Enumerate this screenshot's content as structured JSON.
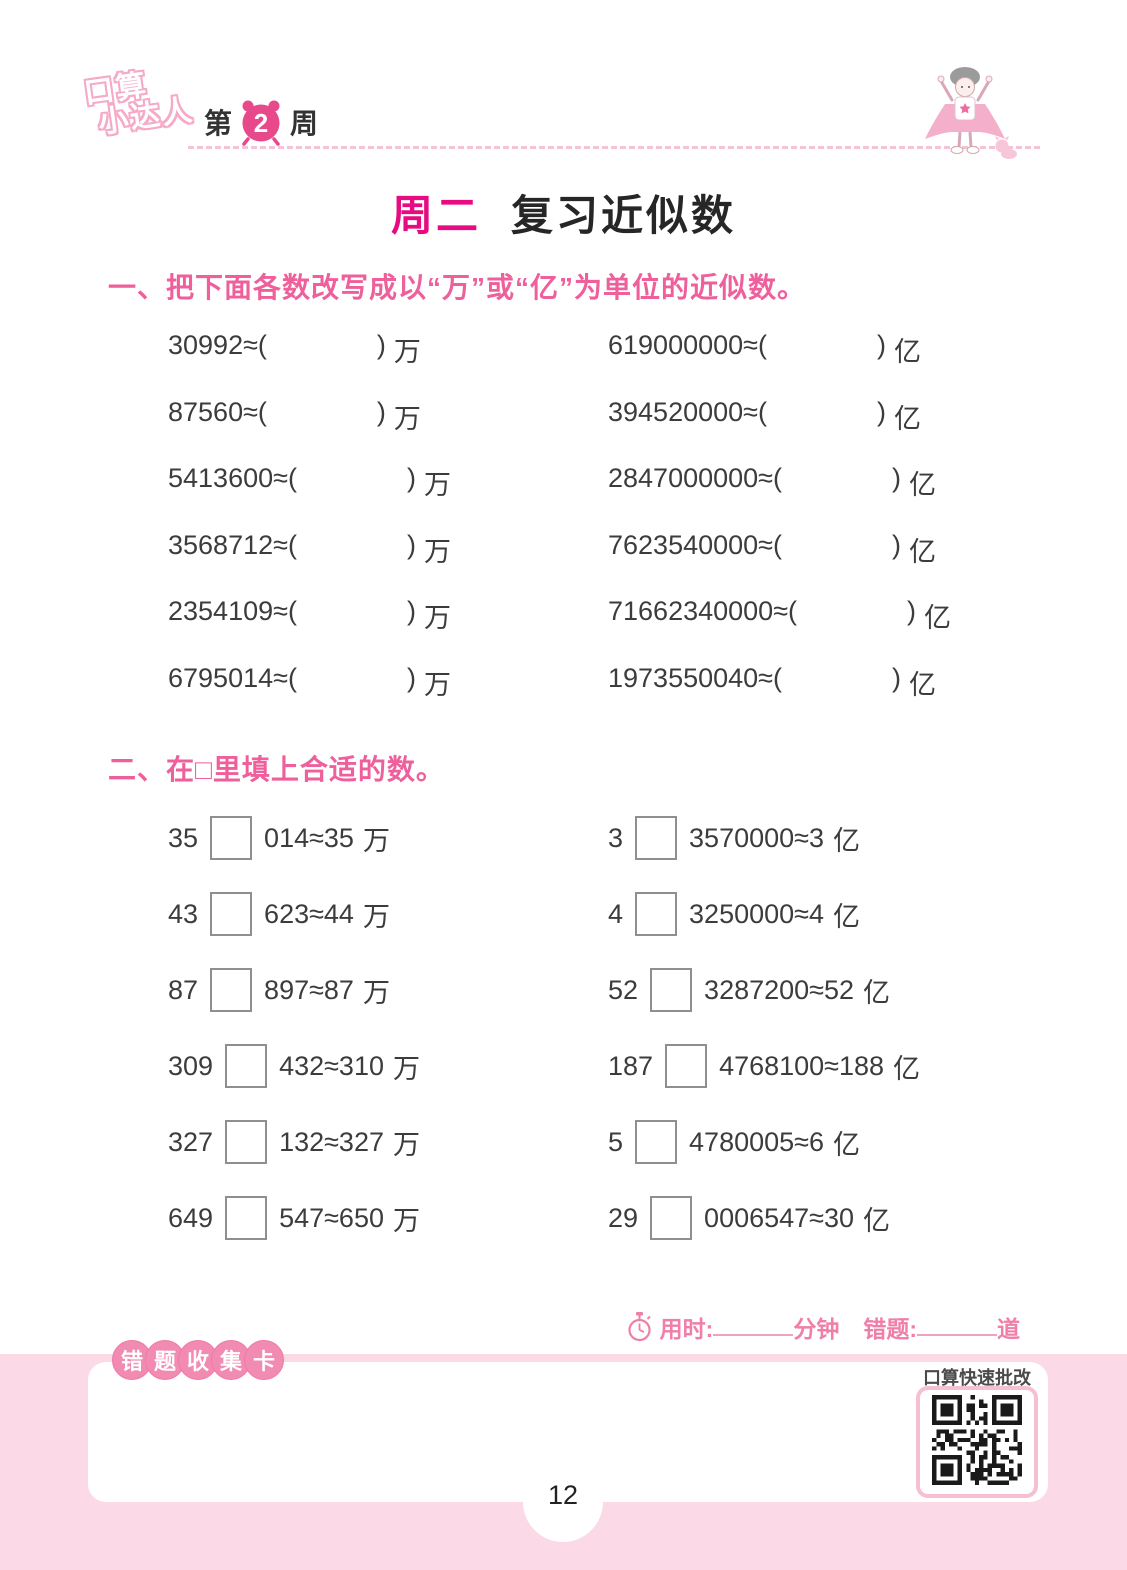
{
  "page": {
    "number": "12"
  },
  "header": {
    "logo": {
      "line1": "口算",
      "line2": "小达人"
    },
    "week": {
      "prefix": "第",
      "number": "2",
      "suffix": "周"
    }
  },
  "title": {
    "day": "周二",
    "text": "复习近似数"
  },
  "symbols": {
    "approx_open": "≈(",
    "close_paren": ")"
  },
  "section1": {
    "heading": "一、把下面各数改写成以“万”或“亿”为单位的近似数。",
    "rows_left": [
      {
        "num": "30992",
        "unit": "万"
      },
      {
        "num": "87560",
        "unit": "万"
      },
      {
        "num": "5413600",
        "unit": "万"
      },
      {
        "num": "3568712",
        "unit": "万"
      },
      {
        "num": "2354109",
        "unit": "万"
      },
      {
        "num": "6795014",
        "unit": "万"
      }
    ],
    "rows_right": [
      {
        "num": "619000000",
        "unit": "亿"
      },
      {
        "num": "394520000",
        "unit": "亿"
      },
      {
        "num": "2847000000",
        "unit": "亿"
      },
      {
        "num": "7623540000",
        "unit": "亿"
      },
      {
        "num": "71662340000",
        "unit": "亿"
      },
      {
        "num": "1973550040",
        "unit": "亿"
      }
    ]
  },
  "section2": {
    "heading": "二、在□里填上合适的数。",
    "rows_left": [
      {
        "pre": "35",
        "post": "014≈35",
        "unit": "万"
      },
      {
        "pre": "43",
        "post": "623≈44",
        "unit": "万"
      },
      {
        "pre": "87",
        "post": "897≈87",
        "unit": "万"
      },
      {
        "pre": "309",
        "post": "432≈310",
        "unit": "万"
      },
      {
        "pre": "327",
        "post": "132≈327",
        "unit": "万"
      },
      {
        "pre": "649",
        "post": "547≈650",
        "unit": "万"
      }
    ],
    "rows_right": [
      {
        "pre": "3",
        "post": "3570000≈3",
        "unit": "亿"
      },
      {
        "pre": "4",
        "post": "3250000≈4",
        "unit": "亿"
      },
      {
        "pre": "52",
        "post": "3287200≈52",
        "unit": "亿"
      },
      {
        "pre": "187",
        "post": "4768100≈188",
        "unit": "亿"
      },
      {
        "pre": "5",
        "post": "4780005≈6",
        "unit": "亿"
      },
      {
        "pre": "29",
        "post": "0006547≈30",
        "unit": "亿"
      }
    ]
  },
  "footer": {
    "time_label": "用时:",
    "time_unit": "分钟",
    "wrong_label": "错题:",
    "wrong_unit": "道"
  },
  "bottom": {
    "card_label_chars": [
      "错",
      "题",
      "收",
      "集",
      "卡"
    ],
    "qr_label": "口算快速批改"
  },
  "icons": {
    "week_badge": "alarm-clock",
    "timer": "stopwatch",
    "qr": "qr-code",
    "mascot": "caped-kid-illustration"
  },
  "colors": {
    "accent_deep_pink": "#e60b80",
    "accent_pink": "#ee5f9b",
    "footer_pink": "#ef7fa8",
    "band_pink": "#fbd9e7",
    "bubble_pink": "#f28bb1",
    "qr_border_pink": "#f6bfd3",
    "clock_pink": "#e8498a",
    "text_dark": "#3c3c3c",
    "box_border": "#8f8f8f"
  }
}
